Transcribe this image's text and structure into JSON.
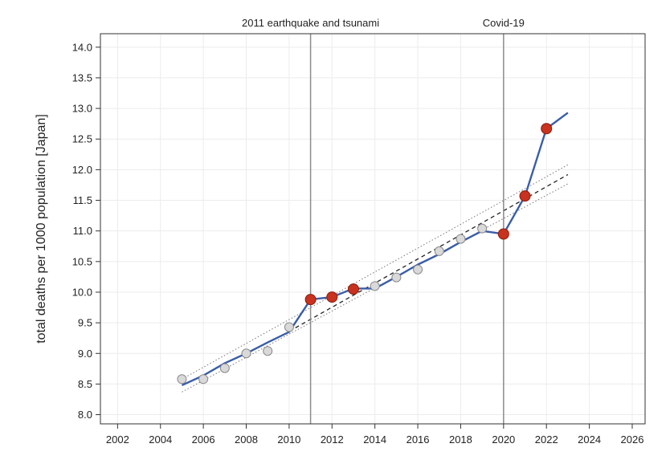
{
  "chart_data": {
    "type": "line",
    "title": "",
    "xlabel": "",
    "ylabel": "total deaths per 1000 population [Japan]",
    "xlim": [
      2001.2,
      2026.6
    ],
    "ylim": [
      7.85,
      14.22
    ],
    "grid": true,
    "x_ticks": [
      2002,
      2004,
      2006,
      2008,
      2010,
      2012,
      2014,
      2016,
      2018,
      2020,
      2022,
      2024,
      2026
    ],
    "y_ticks": [
      8.0,
      8.5,
      9.0,
      9.5,
      10.0,
      10.5,
      11.0,
      11.5,
      12.0,
      12.5,
      13.0,
      13.5,
      14.0
    ],
    "events": [
      {
        "x": 2011,
        "label": "2011 earthquake and tsunami"
      },
      {
        "x": 2020,
        "label": "Covid-19"
      }
    ],
    "series": [
      {
        "role": "observed-points",
        "x": [
          2005,
          2006,
          2007,
          2008,
          2009,
          2010,
          2011,
          2012,
          2013,
          2014,
          2015,
          2016,
          2017,
          2018,
          2019,
          2020,
          2021,
          2022
        ],
        "values": [
          8.58,
          8.58,
          8.76,
          9.0,
          9.04,
          9.43,
          9.88,
          9.92,
          10.05,
          10.1,
          10.24,
          10.37,
          10.67,
          10.87,
          11.04,
          10.95,
          11.57,
          12.67
        ],
        "excess": [
          false,
          false,
          false,
          false,
          false,
          false,
          true,
          true,
          true,
          false,
          false,
          false,
          false,
          false,
          false,
          true,
          true,
          true
        ]
      },
      {
        "role": "fitted-line",
        "x": [
          2005,
          2006,
          2007,
          2008,
          2009,
          2010,
          2011,
          2012,
          2013,
          2014,
          2015,
          2016,
          2017,
          2018,
          2019,
          2020,
          2021,
          2022,
          2023
        ],
        "values": [
          8.48,
          8.64,
          8.84,
          9.0,
          9.18,
          9.35,
          9.88,
          9.92,
          10.06,
          10.06,
          10.25,
          10.45,
          10.62,
          10.82,
          11.0,
          10.95,
          11.57,
          12.67,
          12.93
        ]
      },
      {
        "role": "trend",
        "x": [
          2010,
          2023
        ],
        "values": [
          9.36,
          11.92
        ]
      },
      {
        "role": "trend-upper",
        "x": [
          2005,
          2023
        ],
        "values": [
          8.58,
          12.08
        ]
      },
      {
        "role": "trend-lower",
        "x": [
          2005,
          2023
        ],
        "values": [
          8.37,
          11.77
        ]
      }
    ],
    "colors": {
      "line": "#3a5da8",
      "point_fill": "#d9d9d9",
      "point_stroke": "#8a8a8a",
      "excess_fill": "#c8321e",
      "excess_stroke": "#8a1c10",
      "event_line": "#8c8c8c",
      "grid": "#ececec",
      "frame": "#333333"
    }
  }
}
